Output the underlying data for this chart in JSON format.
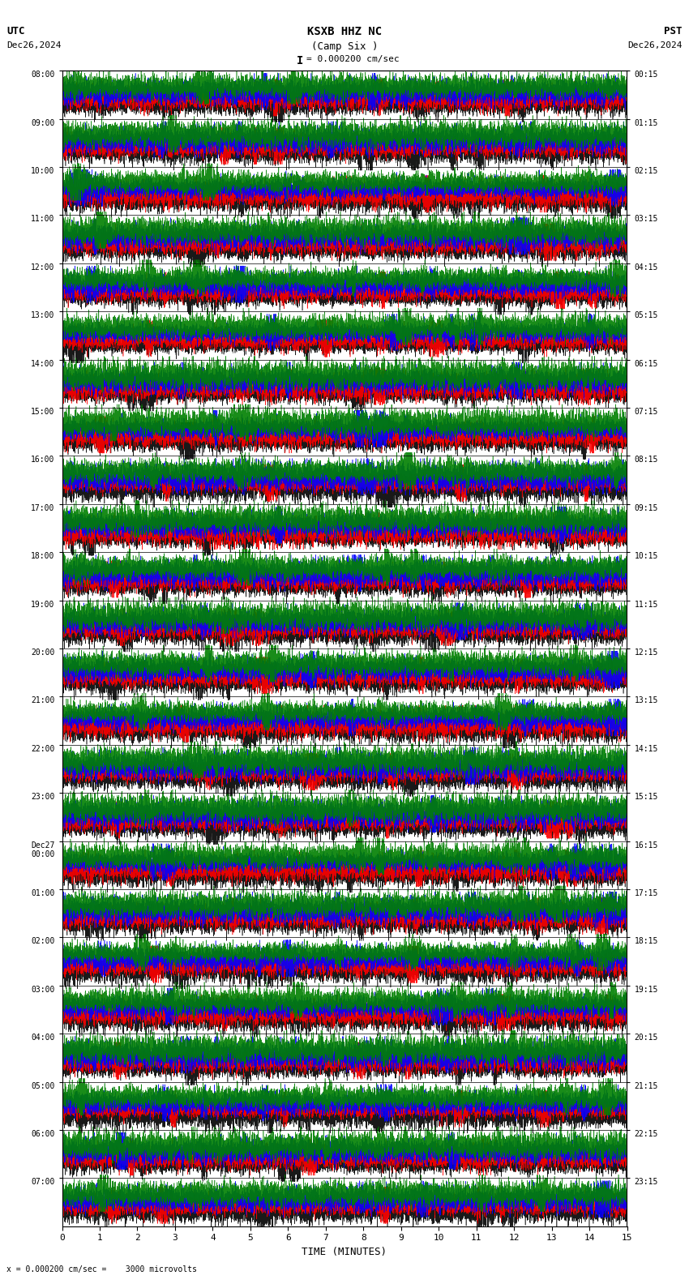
{
  "title_line1": "KSXB HHZ NC",
  "title_line2": "(Camp Six )",
  "scale_label": "= 0.000200 cm/sec",
  "utc_label": "UTC",
  "utc_date": "Dec26,2024",
  "pst_label": "PST",
  "pst_date": "Dec26,2024",
  "bottom_label": "x = 0.000200 cm/sec =    3000 microvolts",
  "xlabel": "TIME (MINUTES)",
  "left_times": [
    "08:00",
    "09:00",
    "10:00",
    "11:00",
    "12:00",
    "13:00",
    "14:00",
    "15:00",
    "16:00",
    "17:00",
    "18:00",
    "19:00",
    "20:00",
    "21:00",
    "22:00",
    "23:00",
    "Dec27\n00:00",
    "01:00",
    "02:00",
    "03:00",
    "04:00",
    "05:00",
    "06:00",
    "07:00"
  ],
  "right_times": [
    "00:15",
    "01:15",
    "02:15",
    "03:15",
    "04:15",
    "05:15",
    "06:15",
    "07:15",
    "08:15",
    "09:15",
    "10:15",
    "11:15",
    "12:15",
    "13:15",
    "14:15",
    "15:15",
    "16:15",
    "17:15",
    "18:15",
    "19:15",
    "20:15",
    "21:15",
    "22:15",
    "23:15"
  ],
  "num_rows": 24,
  "x_max": 15,
  "background_color": "#ffffff",
  "colors": [
    "black",
    "red",
    "blue",
    "green"
  ],
  "fig_width": 8.5,
  "fig_height": 15.84,
  "num_subrows": 4,
  "samples_per_row": 8000,
  "amplitude": 0.45,
  "linewidth": 0.4
}
